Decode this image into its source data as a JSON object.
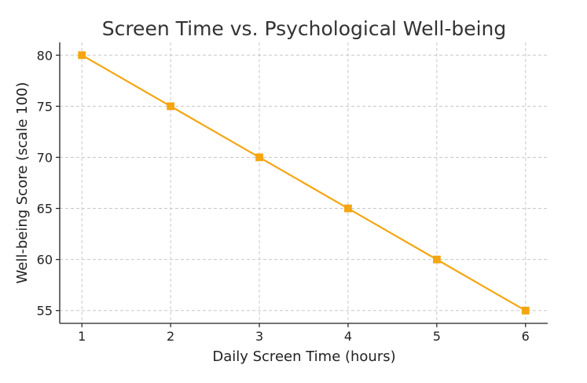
{
  "chart_data": {
    "type": "line",
    "title": "Screen Time vs. Psychological Well-being",
    "xlabel": "Daily Screen Time (hours)",
    "ylabel": "Well-being Score (scale 100)",
    "x": [
      1,
      2,
      3,
      4,
      5,
      6
    ],
    "xticks": [
      1,
      2,
      3,
      4,
      5,
      6
    ],
    "yticks": [
      55,
      60,
      65,
      70,
      75,
      80
    ],
    "xlim": [
      0.75,
      6.25
    ],
    "ylim": [
      53.75,
      81.25
    ],
    "grid": true,
    "series": [
      {
        "values": [
          80,
          75,
          70,
          65,
          60,
          55
        ],
        "color": "#f5a511",
        "marker": "square"
      }
    ]
  }
}
